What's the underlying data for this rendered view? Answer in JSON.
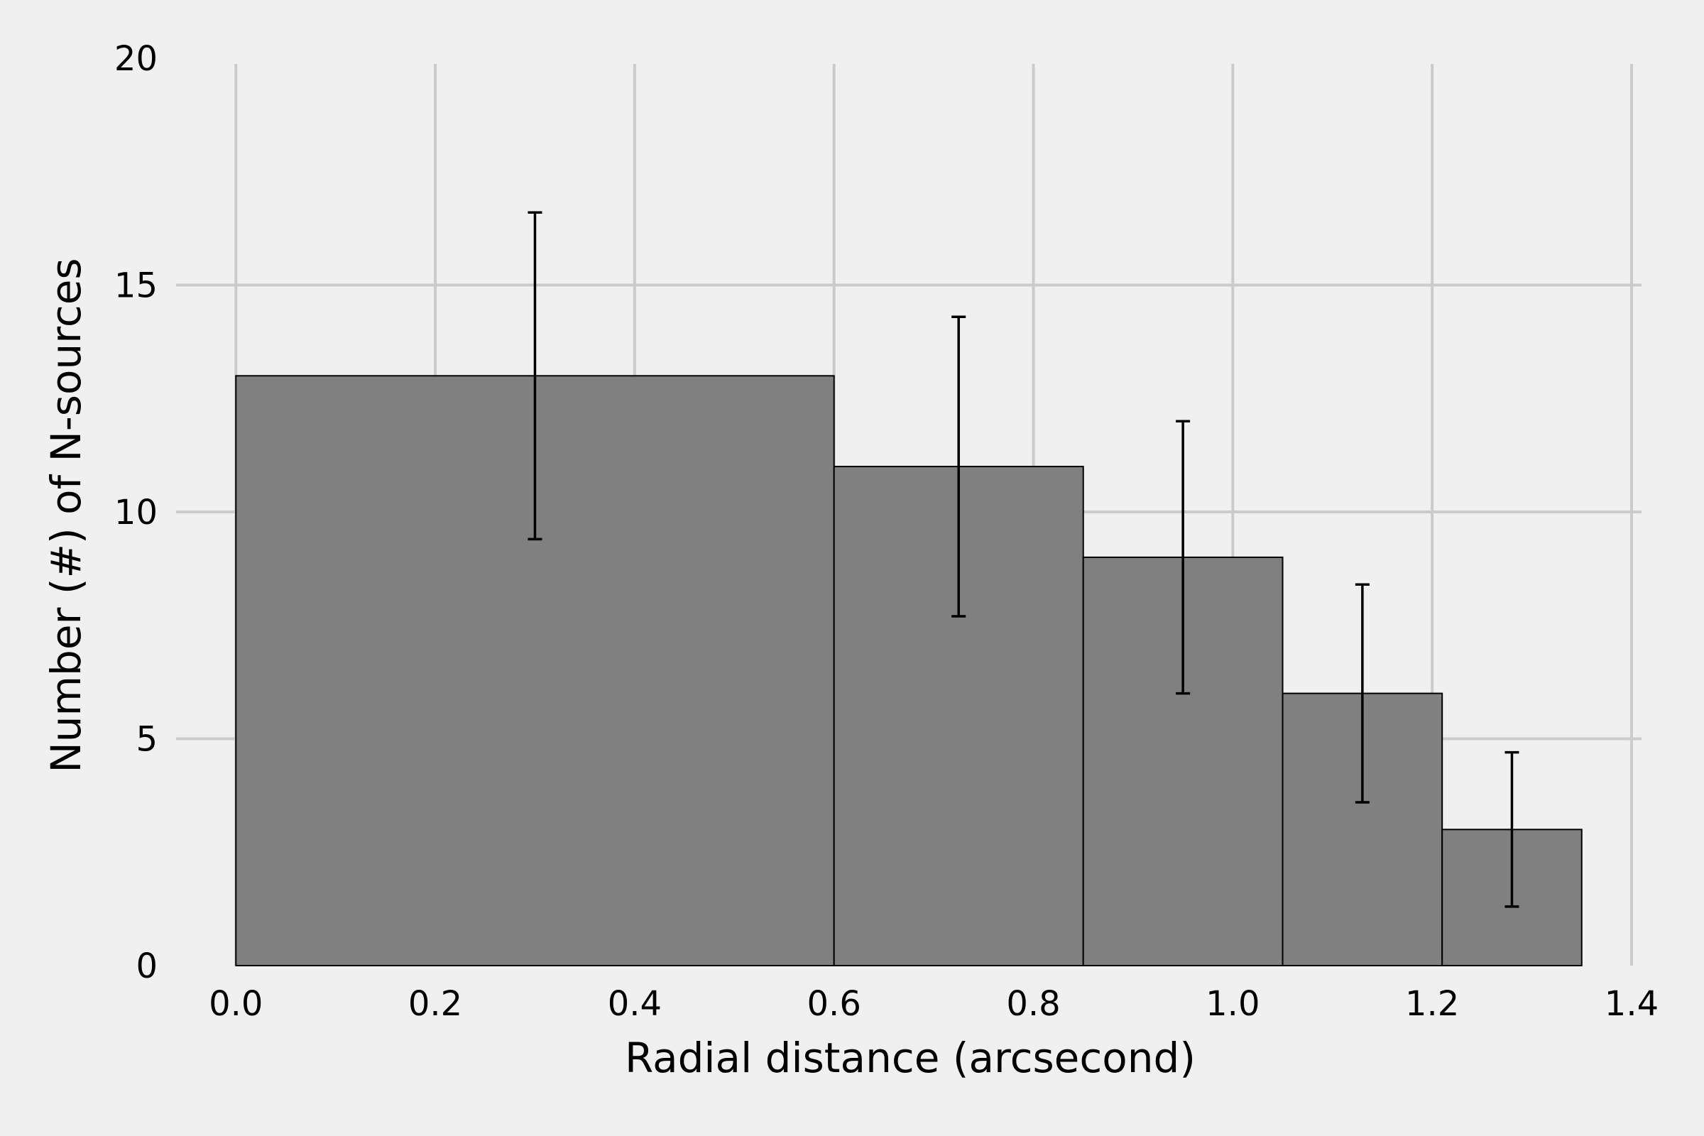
{
  "chart_data": {
    "type": "bar",
    "title": "",
    "xlabel": "Radial distance (arcsecond)",
    "ylabel": "Number (#) of N-sources",
    "xlim": [
      -0.06,
      1.41
    ],
    "ylim": [
      0,
      20
    ],
    "grid": true,
    "bins": [
      {
        "x0": 0.0,
        "x1": 0.6,
        "value": 13,
        "err_low": 9.4,
        "err_high": 16.6,
        "err_x": 0.3
      },
      {
        "x0": 0.6,
        "x1": 0.85,
        "value": 11,
        "err_low": 7.7,
        "err_high": 14.3,
        "err_x": 0.725
      },
      {
        "x0": 0.85,
        "x1": 1.05,
        "value": 9,
        "err_low": 6.0,
        "err_high": 12.0,
        "err_x": 0.95
      },
      {
        "x0": 1.05,
        "x1": 1.21,
        "value": 6,
        "err_low": 3.6,
        "err_high": 8.4,
        "err_x": 1.13
      },
      {
        "x0": 1.21,
        "x1": 1.35,
        "value": 3,
        "err_low": 1.3,
        "err_high": 4.7,
        "err_x": 1.28
      }
    ],
    "x_ticks": [
      0.0,
      0.2,
      0.4,
      0.6,
      0.8,
      1.0,
      1.2,
      1.4
    ],
    "x_tick_labels": [
      "0.0",
      "0.2",
      "0.4",
      "0.6",
      "0.8",
      "1.0",
      "1.2",
      "1.4"
    ],
    "y_ticks": [
      0,
      5,
      10,
      15,
      20
    ],
    "y_tick_labels": [
      "0",
      "5",
      "10",
      "15",
      "20"
    ],
    "colors": {
      "bar_fill": "#808080",
      "bar_edge": "#000000",
      "errorbar": "#000000",
      "grid": "#cbcbcb",
      "background": "#f0f0f0"
    }
  }
}
